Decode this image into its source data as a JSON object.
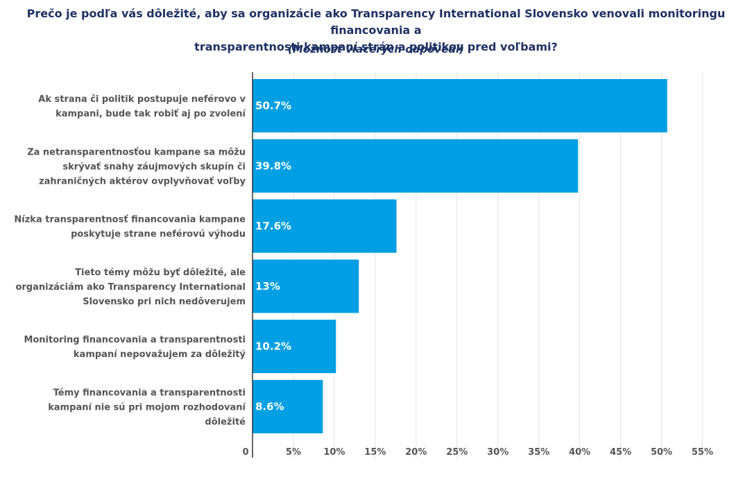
{
  "title_line1": "Prečo je podľa vás dôležité, aby sa organizácie ako Transparency International Slovensko venovali monitoringu financovania a",
  "title_line2": "transparentnosti kampaní strán a politikov pred voľbami?",
  "subtitle": "(Možnosť viacerých odpovedí)",
  "chart_data": {
    "type": "bar",
    "orientation": "horizontal",
    "categories": [
      [
        "Ak strana či politik postupuje neférovo v",
        "kampani, bude tak robiť aj po zvolení"
      ],
      [
        "Za netransparentnosťou kampane sa môžu",
        "skrývať snahy záujmových skupín či",
        "zahraničných aktérov ovplyvňovať voľby"
      ],
      [
        "Nízka transparentnosť financovania kampane",
        "poskytuje strane neférovú výhodu"
      ],
      [
        "Tieto témy môžu byť dôležité, ale",
        "organizáciám ako Transparency International",
        "Slovensko pri nich nedôverujem"
      ],
      [
        "Monitoring financovania a transparentnosti",
        "kampaní nepovažujem za dôležitý"
      ],
      [
        "Témy financovania a transparentnosti",
        "kampaní nie sú pri mojom rozhodovaní",
        "dôležité"
      ]
    ],
    "values": [
      50.7,
      39.8,
      17.6,
      13,
      10.2,
      8.6
    ],
    "value_labels": [
      "50.7%",
      "39.8%",
      "17.6%",
      "13%",
      "10.2%",
      "8.6%"
    ],
    "xlim": [
      0,
      55
    ],
    "ticks": [
      0,
      5,
      10,
      15,
      20,
      25,
      30,
      35,
      40,
      45,
      50,
      55
    ],
    "tick_labels": [
      "0",
      "5%",
      "10%",
      "15%",
      "20%",
      "25%",
      "30%",
      "35%",
      "40%",
      "45%",
      "50%",
      "55%"
    ],
    "bar_color": "#009fe3",
    "grid": true
  }
}
